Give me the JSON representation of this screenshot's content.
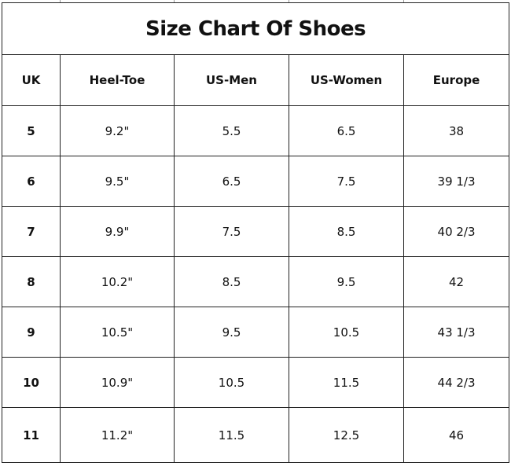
{
  "chart_data": {
    "type": "table",
    "title": "Size Chart Of Shoes",
    "columns": [
      "UK",
      "Heel-Toe",
      "US-Men",
      "US-Women",
      "Europe"
    ],
    "rows": [
      [
        "5",
        "9.2\"",
        "5.5",
        "6.5",
        "38"
      ],
      [
        "6",
        "9.5\"",
        "6.5",
        "7.5",
        "39 1/3"
      ],
      [
        "7",
        "9.9\"",
        "7.5",
        "8.5",
        "40 2/3"
      ],
      [
        "8",
        "10.2\"",
        "8.5",
        "9.5",
        "42"
      ],
      [
        "9",
        "10.5\"",
        "9.5",
        "10.5",
        "43 1/3"
      ],
      [
        "10",
        "10.9\"",
        "10.5",
        "11.5",
        "44 2/3"
      ],
      [
        "11",
        "11.2\"",
        "11.5",
        "12.5",
        "46"
      ]
    ]
  }
}
